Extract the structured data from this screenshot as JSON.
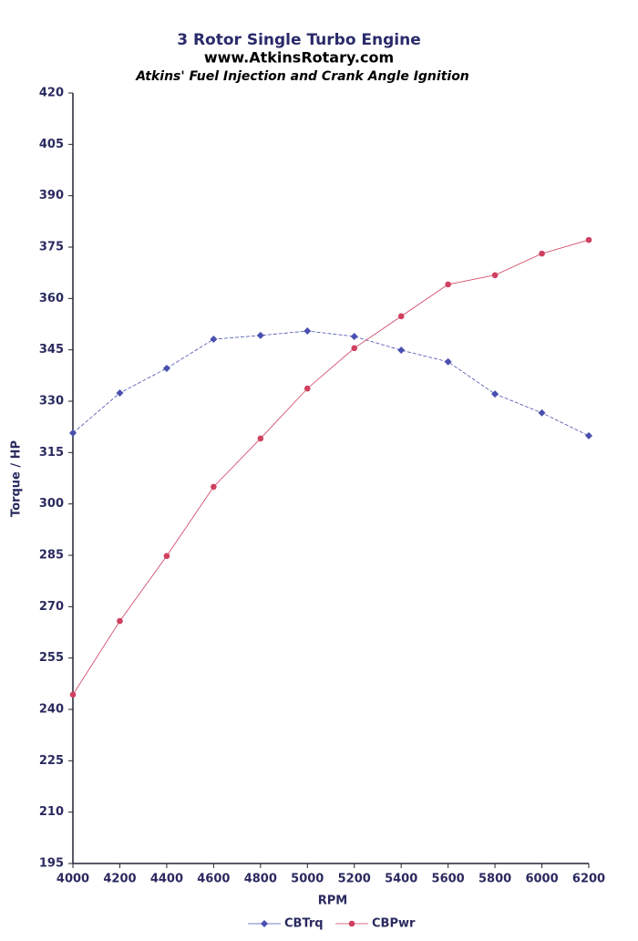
{
  "chart_data": {
    "type": "line",
    "title": "3 Rotor Single Turbo Engine",
    "subtitles": [
      "www.AtkinsRotary.com",
      "Atkins' Fuel Injection and Crank Angle Ignition"
    ],
    "x_label": "RPM",
    "y_label": "Torque / HP",
    "x": [
      4000,
      4200,
      4400,
      4600,
      4800,
      5000,
      5200,
      5400,
      5600,
      5800,
      6000,
      6200
    ],
    "series": [
      {
        "name": "CBTrq",
        "color": "#4a50b0",
        "marker": "diamond",
        "values": [
          320.7,
          332.4,
          339.6,
          348.1,
          349.2,
          350.5,
          348.9,
          344.9,
          341.5,
          332.1,
          326.6,
          319.9
        ]
      },
      {
        "name": "CBPwr",
        "color": "#d04060",
        "marker": "circle",
        "values": [
          244.3,
          265.8,
          284.8,
          305.0,
          319.1,
          333.7,
          345.5,
          354.8,
          364.1,
          366.8,
          373.1,
          377.1
        ]
      }
    ],
    "xlim": [
      4000,
      6200
    ],
    "xticks": [
      4000,
      4200,
      4400,
      4600,
      4800,
      5000,
      5200,
      5400,
      5600,
      5800,
      6000,
      6200
    ],
    "ylim": [
      195,
      420
    ],
    "yticks": [
      195,
      210,
      225,
      240,
      255,
      270,
      285,
      300,
      315,
      330,
      345,
      360,
      375,
      390,
      405,
      420
    ],
    "legend": "bottom"
  }
}
